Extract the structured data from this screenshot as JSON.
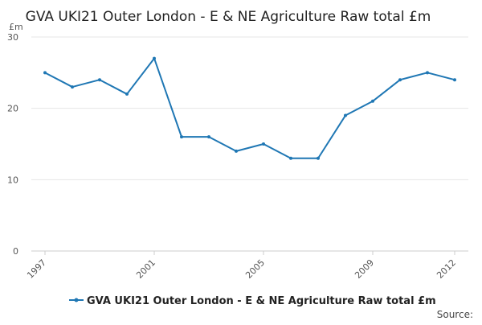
{
  "chart_data": {
    "type": "line",
    "title": "GVA UKI21 Outer London - E & NE Agriculture Raw total £m",
    "ylabel": "£m",
    "source": "Source:",
    "x": [
      1997,
      1998,
      1999,
      2000,
      2001,
      2002,
      2003,
      2004,
      2005,
      2006,
      2007,
      2008,
      2009,
      2010,
      2011,
      2012
    ],
    "x_ticks": [
      1997,
      2001,
      2005,
      2009,
      2012
    ],
    "y_ticks": [
      0,
      10,
      20,
      30
    ],
    "ylim": [
      0,
      30
    ],
    "xlim": [
      1997,
      2012
    ],
    "grid": true,
    "legend_position": "bottom",
    "series": [
      {
        "name": "GVA UKI21 Outer London - E & NE Agriculture Raw total £m",
        "color": "#1f77b4",
        "values": [
          25,
          23,
          24,
          22,
          27,
          16,
          16,
          14,
          15,
          13,
          13,
          19,
          21,
          24,
          25,
          24
        ]
      }
    ]
  }
}
